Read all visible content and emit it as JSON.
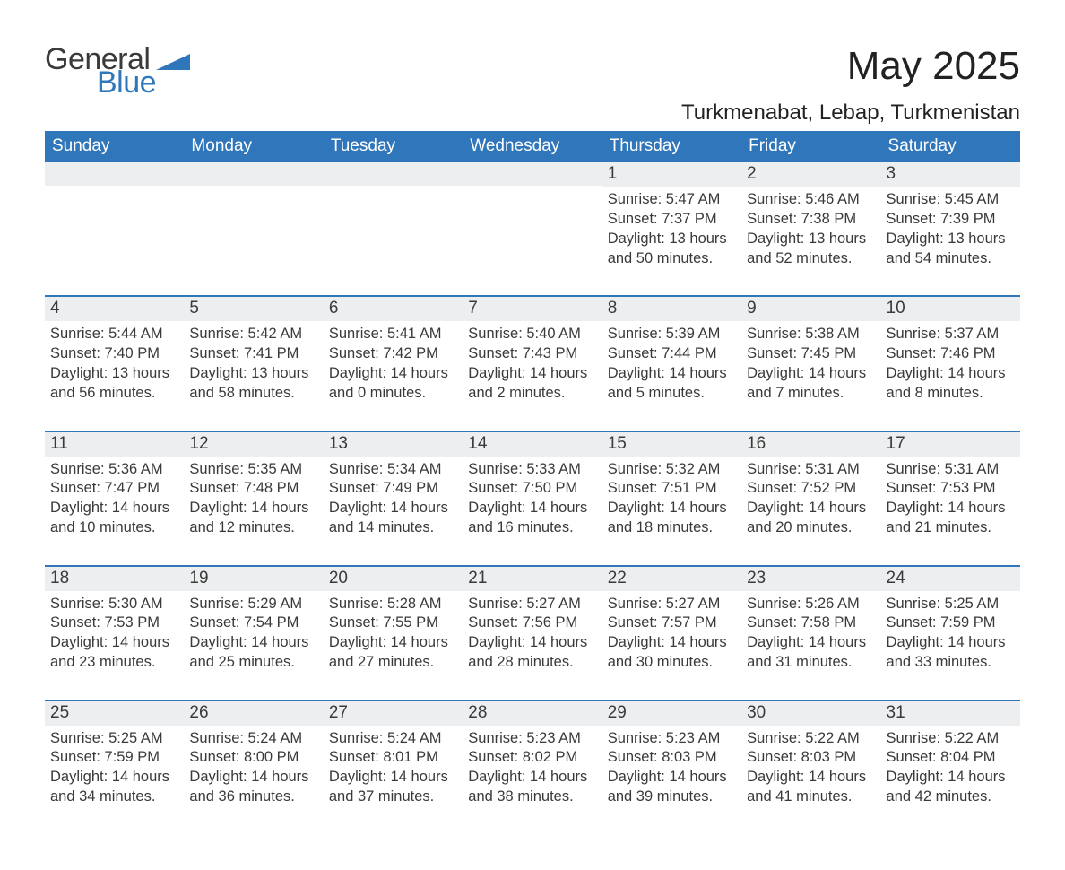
{
  "brand": {
    "general": "General",
    "blue": "Blue"
  },
  "title": "May 2025",
  "location": "Turkmenabat, Lebap, Turkmenistan",
  "colors": {
    "accent": "#2f76bb",
    "header_row_bg": "#2f76bb",
    "header_row_text": "#ffffff",
    "daynum_bg": "#eceeef",
    "text": "#3a3a3a",
    "background": "#ffffff"
  },
  "weekdays": [
    "Sunday",
    "Monday",
    "Tuesday",
    "Wednesday",
    "Thursday",
    "Friday",
    "Saturday"
  ],
  "weeks": [
    [
      {
        "day": "",
        "sunrise": "",
        "sunset": "",
        "daylight": ""
      },
      {
        "day": "",
        "sunrise": "",
        "sunset": "",
        "daylight": ""
      },
      {
        "day": "",
        "sunrise": "",
        "sunset": "",
        "daylight": ""
      },
      {
        "day": "",
        "sunrise": "",
        "sunset": "",
        "daylight": ""
      },
      {
        "day": "1",
        "sunrise": "Sunrise: 5:47 AM",
        "sunset": "Sunset: 7:37 PM",
        "daylight": "Daylight: 13 hours and 50 minutes."
      },
      {
        "day": "2",
        "sunrise": "Sunrise: 5:46 AM",
        "sunset": "Sunset: 7:38 PM",
        "daylight": "Daylight: 13 hours and 52 minutes."
      },
      {
        "day": "3",
        "sunrise": "Sunrise: 5:45 AM",
        "sunset": "Sunset: 7:39 PM",
        "daylight": "Daylight: 13 hours and 54 minutes."
      }
    ],
    [
      {
        "day": "4",
        "sunrise": "Sunrise: 5:44 AM",
        "sunset": "Sunset: 7:40 PM",
        "daylight": "Daylight: 13 hours and 56 minutes."
      },
      {
        "day": "5",
        "sunrise": "Sunrise: 5:42 AM",
        "sunset": "Sunset: 7:41 PM",
        "daylight": "Daylight: 13 hours and 58 minutes."
      },
      {
        "day": "6",
        "sunrise": "Sunrise: 5:41 AM",
        "sunset": "Sunset: 7:42 PM",
        "daylight": "Daylight: 14 hours and 0 minutes."
      },
      {
        "day": "7",
        "sunrise": "Sunrise: 5:40 AM",
        "sunset": "Sunset: 7:43 PM",
        "daylight": "Daylight: 14 hours and 2 minutes."
      },
      {
        "day": "8",
        "sunrise": "Sunrise: 5:39 AM",
        "sunset": "Sunset: 7:44 PM",
        "daylight": "Daylight: 14 hours and 5 minutes."
      },
      {
        "day": "9",
        "sunrise": "Sunrise: 5:38 AM",
        "sunset": "Sunset: 7:45 PM",
        "daylight": "Daylight: 14 hours and 7 minutes."
      },
      {
        "day": "10",
        "sunrise": "Sunrise: 5:37 AM",
        "sunset": "Sunset: 7:46 PM",
        "daylight": "Daylight: 14 hours and 8 minutes."
      }
    ],
    [
      {
        "day": "11",
        "sunrise": "Sunrise: 5:36 AM",
        "sunset": "Sunset: 7:47 PM",
        "daylight": "Daylight: 14 hours and 10 minutes."
      },
      {
        "day": "12",
        "sunrise": "Sunrise: 5:35 AM",
        "sunset": "Sunset: 7:48 PM",
        "daylight": "Daylight: 14 hours and 12 minutes."
      },
      {
        "day": "13",
        "sunrise": "Sunrise: 5:34 AM",
        "sunset": "Sunset: 7:49 PM",
        "daylight": "Daylight: 14 hours and 14 minutes."
      },
      {
        "day": "14",
        "sunrise": "Sunrise: 5:33 AM",
        "sunset": "Sunset: 7:50 PM",
        "daylight": "Daylight: 14 hours and 16 minutes."
      },
      {
        "day": "15",
        "sunrise": "Sunrise: 5:32 AM",
        "sunset": "Sunset: 7:51 PM",
        "daylight": "Daylight: 14 hours and 18 minutes."
      },
      {
        "day": "16",
        "sunrise": "Sunrise: 5:31 AM",
        "sunset": "Sunset: 7:52 PM",
        "daylight": "Daylight: 14 hours and 20 minutes."
      },
      {
        "day": "17",
        "sunrise": "Sunrise: 5:31 AM",
        "sunset": "Sunset: 7:53 PM",
        "daylight": "Daylight: 14 hours and 21 minutes."
      }
    ],
    [
      {
        "day": "18",
        "sunrise": "Sunrise: 5:30 AM",
        "sunset": "Sunset: 7:53 PM",
        "daylight": "Daylight: 14 hours and 23 minutes."
      },
      {
        "day": "19",
        "sunrise": "Sunrise: 5:29 AM",
        "sunset": "Sunset: 7:54 PM",
        "daylight": "Daylight: 14 hours and 25 minutes."
      },
      {
        "day": "20",
        "sunrise": "Sunrise: 5:28 AM",
        "sunset": "Sunset: 7:55 PM",
        "daylight": "Daylight: 14 hours and 27 minutes."
      },
      {
        "day": "21",
        "sunrise": "Sunrise: 5:27 AM",
        "sunset": "Sunset: 7:56 PM",
        "daylight": "Daylight: 14 hours and 28 minutes."
      },
      {
        "day": "22",
        "sunrise": "Sunrise: 5:27 AM",
        "sunset": "Sunset: 7:57 PM",
        "daylight": "Daylight: 14 hours and 30 minutes."
      },
      {
        "day": "23",
        "sunrise": "Sunrise: 5:26 AM",
        "sunset": "Sunset: 7:58 PM",
        "daylight": "Daylight: 14 hours and 31 minutes."
      },
      {
        "day": "24",
        "sunrise": "Sunrise: 5:25 AM",
        "sunset": "Sunset: 7:59 PM",
        "daylight": "Daylight: 14 hours and 33 minutes."
      }
    ],
    [
      {
        "day": "25",
        "sunrise": "Sunrise: 5:25 AM",
        "sunset": "Sunset: 7:59 PM",
        "daylight": "Daylight: 14 hours and 34 minutes."
      },
      {
        "day": "26",
        "sunrise": "Sunrise: 5:24 AM",
        "sunset": "Sunset: 8:00 PM",
        "daylight": "Daylight: 14 hours and 36 minutes."
      },
      {
        "day": "27",
        "sunrise": "Sunrise: 5:24 AM",
        "sunset": "Sunset: 8:01 PM",
        "daylight": "Daylight: 14 hours and 37 minutes."
      },
      {
        "day": "28",
        "sunrise": "Sunrise: 5:23 AM",
        "sunset": "Sunset: 8:02 PM",
        "daylight": "Daylight: 14 hours and 38 minutes."
      },
      {
        "day": "29",
        "sunrise": "Sunrise: 5:23 AM",
        "sunset": "Sunset: 8:03 PM",
        "daylight": "Daylight: 14 hours and 39 minutes."
      },
      {
        "day": "30",
        "sunrise": "Sunrise: 5:22 AM",
        "sunset": "Sunset: 8:03 PM",
        "daylight": "Daylight: 14 hours and 41 minutes."
      },
      {
        "day": "31",
        "sunrise": "Sunrise: 5:22 AM",
        "sunset": "Sunset: 8:04 PM",
        "daylight": "Daylight: 14 hours and 42 minutes."
      }
    ]
  ]
}
